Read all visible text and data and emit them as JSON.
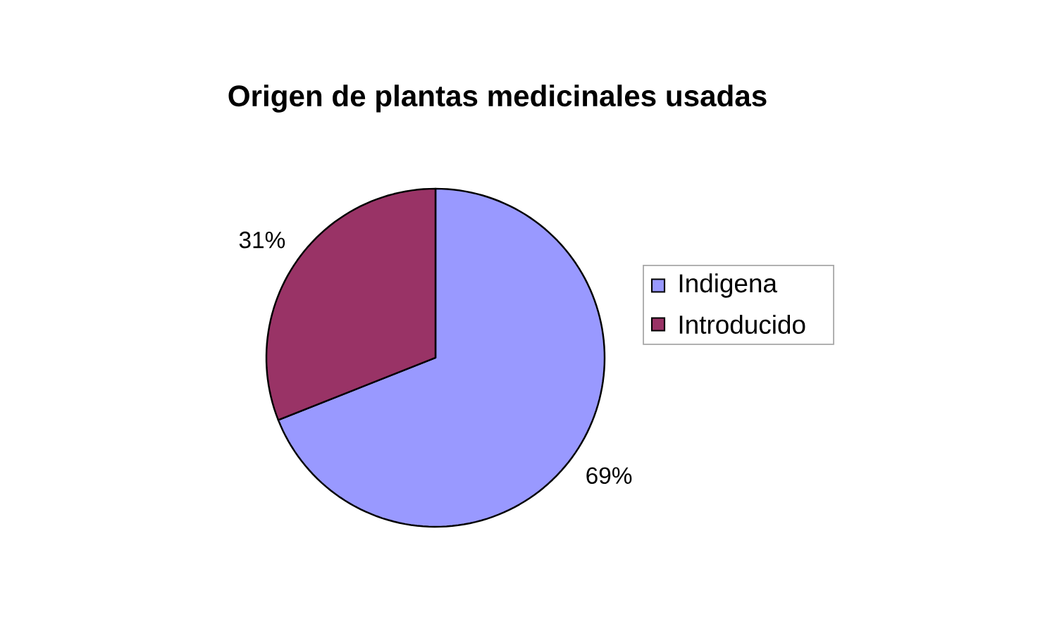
{
  "chart_data": {
    "type": "pie",
    "title": "Origen de plantas medicinales usadas",
    "categories": [
      "Indigena",
      "Introducido"
    ],
    "values": [
      69,
      31
    ],
    "colors": [
      "#9999ff",
      "#993366"
    ],
    "value_labels": [
      "69%",
      "31%"
    ],
    "legend": "right"
  }
}
